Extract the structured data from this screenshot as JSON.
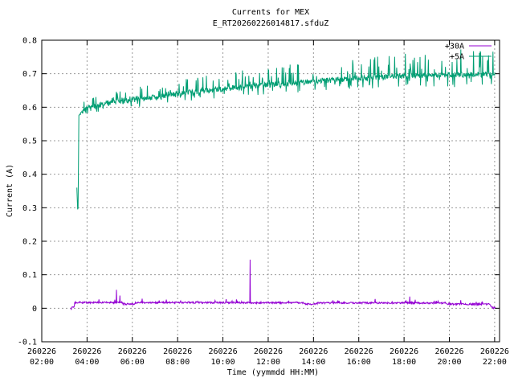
{
  "chart_data": {
    "type": "line",
    "title": "Currents for MEX",
    "subtitle": "E_RT20260226014817.sfduZ",
    "xlabel": "Time (yymmdd HH:MM)",
    "ylabel": "Current (A)",
    "ylim": [
      -0.1,
      0.8
    ],
    "ytick_values": [
      -0.1,
      0,
      0.1,
      0.2,
      0.3,
      0.4,
      0.5,
      0.6,
      0.7,
      0.8
    ],
    "ytick_labels": [
      "-0.1",
      "0",
      "0.1",
      "0.2",
      "0.3",
      "0.4",
      "0.5",
      "0.6",
      "0.7",
      "0.8"
    ],
    "xtick_date": "260226",
    "xtick_times": [
      "02:00",
      "04:00",
      "06:00",
      "08:00",
      "10:00",
      "12:00",
      "14:00",
      "16:00",
      "18:00",
      "20:00",
      "22:00"
    ],
    "xtick_minutes": [
      120,
      240,
      360,
      480,
      600,
      720,
      840,
      960,
      1080,
      1200,
      1320
    ],
    "x_minutes_range": [
      120,
      1333
    ],
    "grid": true,
    "grid_color": "#9a9a9a",
    "border_color": "#000000",
    "background_color": "#ffffff",
    "legend": {
      "position": "top-right",
      "entries": [
        {
          "label": "+30A",
          "color": "#9400d3"
        },
        {
          "label": "+5A",
          "color": "#009e73"
        }
      ]
    },
    "series": [
      {
        "key": "plus30a",
        "name": "+30A",
        "color": "#9400d3",
        "kind": "flat-noisy",
        "noise_amp": 0.005,
        "trend": [
          [
            197,
            0.0
          ],
          [
            198,
            -0.004
          ],
          [
            199,
            0.003
          ],
          [
            206,
            0.004
          ],
          [
            208,
            0.017
          ],
          [
            333,
            0.017
          ],
          [
            336,
            0.0125
          ],
          [
            365,
            0.0125
          ],
          [
            368,
            0.017
          ],
          [
            815,
            0.0165
          ],
          [
            818,
            0.0125
          ],
          [
            848,
            0.0125
          ],
          [
            851,
            0.016
          ],
          [
            1192,
            0.016
          ],
          [
            1196,
            0.0125
          ],
          [
            1308,
            0.012
          ],
          [
            1312,
            0.002
          ],
          [
            1322,
            0.001
          ]
        ],
        "spikes": [
          [
            318,
            0.055
          ],
          [
            327,
            0.038
          ],
          [
            672,
            0.145
          ],
          [
            1095,
            0.035
          ]
        ]
      },
      {
        "key": "plus5a",
        "name": "+5A",
        "color": "#009e73",
        "kind": "noisy-band",
        "noise_amp": 0.016,
        "trend": [
          [
            213,
            0.36
          ],
          [
            215,
            0.295
          ],
          [
            216.5,
            0.3
          ],
          [
            218,
            0.575
          ],
          [
            228,
            0.588
          ],
          [
            248,
            0.601
          ],
          [
            290,
            0.612
          ],
          [
            360,
            0.622
          ],
          [
            435,
            0.632
          ],
          [
            520,
            0.645
          ],
          [
            600,
            0.655
          ],
          [
            690,
            0.664
          ],
          [
            780,
            0.672
          ],
          [
            870,
            0.679
          ],
          [
            960,
            0.686
          ],
          [
            1060,
            0.692
          ],
          [
            1160,
            0.696
          ],
          [
            1322,
            0.698
          ]
        ],
        "spikes": []
      }
    ]
  }
}
